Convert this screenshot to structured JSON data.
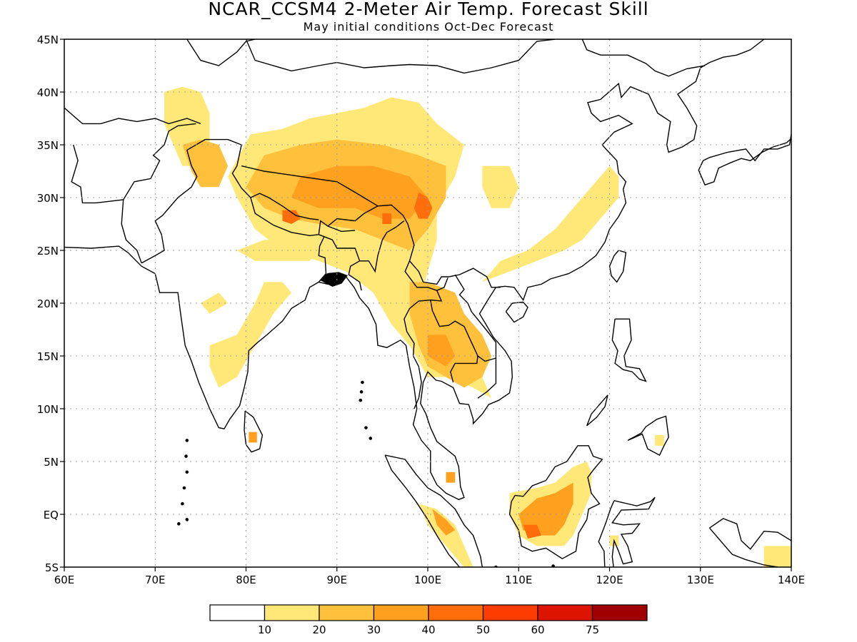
{
  "title": "NCAR_CCSM4 2-Meter Air Temp. Forecast Skill",
  "subtitle": "May initial conditions  Oct-Dec Forecast",
  "map": {
    "lon_range": [
      60,
      140
    ],
    "lat_range": [
      -5,
      45
    ],
    "grid": true
  },
  "x_ticks": [
    "60E",
    "70E",
    "80E",
    "90E",
    "100E",
    "110E",
    "120E",
    "130E",
    "140E"
  ],
  "y_ticks": [
    "45N",
    "40N",
    "35N",
    "30N",
    "25N",
    "20N",
    "15N",
    "10N",
    "5N",
    "EQ",
    "5S"
  ],
  "legend": {
    "labels": [
      "10",
      "20",
      "30",
      "40",
      "50",
      "60",
      "75"
    ],
    "colors": [
      "#ffffff",
      "#ffe878",
      "#ffc03c",
      "#ffa01e",
      "#ff6e0a",
      "#ff3c00",
      "#dc1400",
      "#a00000"
    ]
  },
  "skill_regions": [
    {
      "name": "tibetan-plateau",
      "level": 1,
      "poly": [
        [
          80.5,
          36
        ],
        [
          84,
          36.5
        ],
        [
          87,
          37.5
        ],
        [
          90,
          38
        ],
        [
          93,
          38.5
        ],
        [
          96,
          39.5
        ],
        [
          99,
          39
        ],
        [
          101,
          37
        ],
        [
          104,
          35
        ],
        [
          103,
          32
        ],
        [
          101,
          29
        ],
        [
          101,
          26
        ],
        [
          100,
          23
        ],
        [
          99,
          20
        ],
        [
          101,
          17
        ],
        [
          104,
          15
        ],
        [
          106,
          13
        ],
        [
          107,
          11
        ],
        [
          105,
          12
        ],
        [
          102,
          13
        ],
        [
          100,
          13
        ],
        [
          98,
          16
        ],
        [
          96,
          18
        ],
        [
          94,
          21
        ],
        [
          91,
          23
        ],
        [
          88,
          24
        ],
        [
          84,
          25
        ],
        [
          81,
          27
        ],
        [
          79,
          30
        ],
        [
          78,
          32
        ]
      ]
    },
    {
      "name": "tibet-core",
      "level": 2,
      "poly": [
        [
          82,
          34
        ],
        [
          86,
          35
        ],
        [
          90,
          35.5
        ],
        [
          95,
          35
        ],
        [
          99,
          34
        ],
        [
          102,
          33
        ],
        [
          102,
          30
        ],
        [
          100,
          27
        ],
        [
          98,
          25
        ],
        [
          95,
          26
        ],
        [
          92,
          27
        ],
        [
          88,
          27.5
        ],
        [
          85,
          28
        ],
        [
          82,
          29
        ],
        [
          80,
          31
        ]
      ]
    },
    {
      "name": "tibet-center",
      "level": 3,
      "poly": [
        [
          86,
          32
        ],
        [
          90,
          33
        ],
        [
          94,
          33
        ],
        [
          98,
          32
        ],
        [
          100,
          30
        ],
        [
          98,
          28
        ],
        [
          95,
          28
        ],
        [
          92,
          29
        ],
        [
          88,
          29
        ],
        [
          85,
          30
        ]
      ]
    },
    {
      "name": "tibet-east-max",
      "level": 4,
      "poly": [
        [
          99,
          30.5
        ],
        [
          100,
          30
        ],
        [
          100.5,
          29
        ],
        [
          100,
          28
        ],
        [
          99,
          28
        ],
        [
          98.5,
          29
        ]
      ]
    },
    {
      "name": "nepal-max",
      "level": 4,
      "poly": [
        [
          84,
          28.8
        ],
        [
          85.5,
          28.8
        ],
        [
          86,
          28
        ],
        [
          85,
          27.5
        ],
        [
          84,
          27.8
        ]
      ]
    },
    {
      "name": "bhutan-max",
      "level": 4,
      "poly": [
        [
          95,
          28.5
        ],
        [
          96,
          28.5
        ],
        [
          96,
          27.5
        ],
        [
          95,
          27.5
        ]
      ]
    },
    {
      "name": "indochina",
      "level": 2,
      "poly": [
        [
          98,
          22
        ],
        [
          100,
          22
        ],
        [
          103,
          21
        ],
        [
          104,
          19
        ],
        [
          106,
          17
        ],
        [
          107,
          15
        ],
        [
          106,
          13
        ],
        [
          104,
          12
        ],
        [
          102,
          13
        ],
        [
          100,
          14
        ],
        [
          99,
          16
        ],
        [
          98,
          19
        ]
      ]
    },
    {
      "name": "indochina-core",
      "level": 3,
      "poly": [
        [
          100,
          17
        ],
        [
          102,
          17
        ],
        [
          103,
          15
        ],
        [
          102,
          14
        ],
        [
          100,
          15
        ]
      ]
    },
    {
      "name": "pamir-karakoram",
      "level": 1,
      "poly": [
        [
          71,
          40
        ],
        [
          73,
          40.5
        ],
        [
          75,
          40
        ],
        [
          76,
          38
        ],
        [
          76,
          35
        ],
        [
          75,
          33
        ],
        [
          73,
          33
        ],
        [
          72,
          35
        ],
        [
          71,
          37
        ]
      ]
    },
    {
      "name": "kashmir",
      "level": 2,
      "poly": [
        [
          73,
          35
        ],
        [
          75,
          35.5
        ],
        [
          77,
          35
        ],
        [
          78,
          33
        ],
        [
          77,
          31
        ],
        [
          75,
          31
        ],
        [
          74,
          32.5
        ]
      ]
    },
    {
      "name": "east-china",
      "level": 1,
      "poly": [
        [
          106,
          22
        ],
        [
          109,
          23
        ],
        [
          112,
          24
        ],
        [
          115,
          25
        ],
        [
          117,
          26
        ],
        [
          119,
          28
        ],
        [
          121,
          30
        ],
        [
          121,
          32
        ],
        [
          120,
          33
        ],
        [
          118,
          31
        ],
        [
          116,
          29
        ],
        [
          114,
          27
        ],
        [
          111,
          25
        ],
        [
          108,
          24
        ]
      ]
    },
    {
      "name": "central-china",
      "level": 1,
      "poly": [
        [
          106,
          33
        ],
        [
          109,
          33
        ],
        [
          110,
          31
        ],
        [
          109,
          29
        ],
        [
          107,
          29
        ],
        [
          106,
          31
        ]
      ]
    },
    {
      "name": "india-central",
      "level": 1,
      "poly": [
        [
          76,
          16
        ],
        [
          79,
          17
        ],
        [
          81,
          20
        ],
        [
          82,
          22
        ],
        [
          84,
          22
        ],
        [
          85,
          21
        ],
        [
          83,
          19
        ],
        [
          81,
          16
        ],
        [
          79,
          13
        ],
        [
          77,
          12
        ],
        [
          76,
          14
        ]
      ]
    },
    {
      "name": "india-gangetic",
      "level": 1,
      "poly": [
        [
          79,
          25
        ],
        [
          82,
          26
        ],
        [
          86,
          26
        ],
        [
          88,
          25
        ],
        [
          87,
          24
        ],
        [
          84,
          24
        ],
        [
          81,
          24
        ]
      ]
    },
    {
      "name": "india-west",
      "level": 1,
      "poly": [
        [
          75,
          20
        ],
        [
          77,
          21
        ],
        [
          78,
          20
        ],
        [
          76,
          19
        ]
      ]
    },
    {
      "name": "sri-lanka",
      "level": 3,
      "poly": [
        [
          80.3,
          7.8
        ],
        [
          81.2,
          7.8
        ],
        [
          81.2,
          6.8
        ],
        [
          80.3,
          6.8
        ]
      ]
    },
    {
      "name": "borneo",
      "level": 1,
      "poly": [
        [
          109,
          2
        ],
        [
          112,
          2.5
        ],
        [
          114,
          3
        ],
        [
          116,
          4.5
        ],
        [
          117.5,
          5
        ],
        [
          118,
          4
        ],
        [
          118,
          2
        ],
        [
          117,
          0
        ],
        [
          116,
          -2
        ],
        [
          115,
          -3
        ],
        [
          112,
          -3
        ],
        [
          110,
          -2
        ],
        [
          109,
          0
        ]
      ]
    },
    {
      "name": "borneo-core",
      "level": 3,
      "poly": [
        [
          110,
          0
        ],
        [
          112,
          1.5
        ],
        [
          114,
          2
        ],
        [
          116,
          3
        ],
        [
          116,
          1
        ],
        [
          115,
          -1
        ],
        [
          114,
          -2
        ],
        [
          112,
          -2
        ],
        [
          110.5,
          -1.5
        ]
      ]
    },
    {
      "name": "borneo-max",
      "level": 4,
      "poly": [
        [
          110.5,
          -1
        ],
        [
          112,
          -1
        ],
        [
          112.5,
          -2
        ],
        [
          111,
          -2.3
        ]
      ]
    },
    {
      "name": "sumatra",
      "level": 1,
      "poly": [
        [
          99,
          1
        ],
        [
          101,
          0.5
        ],
        [
          103,
          -1
        ],
        [
          104,
          -3
        ],
        [
          105,
          -5
        ],
        [
          104,
          -5
        ],
        [
          102,
          -3
        ],
        [
          100,
          -1
        ]
      ]
    },
    {
      "name": "sumatra-core",
      "level": 3,
      "poly": [
        [
          100.5,
          0.5
        ],
        [
          102,
          -0.5
        ],
        [
          103,
          -1.5
        ],
        [
          102,
          -2
        ],
        [
          101,
          -1
        ]
      ]
    },
    {
      "name": "malaya-dot",
      "level": 3,
      "poly": [
        [
          102,
          4
        ],
        [
          103,
          4
        ],
        [
          103,
          3
        ],
        [
          102,
          3
        ]
      ]
    },
    {
      "name": "new-guinea",
      "level": 1,
      "poly": [
        [
          137,
          -3
        ],
        [
          140,
          -3
        ],
        [
          140,
          -5
        ],
        [
          137,
          -5
        ]
      ]
    },
    {
      "name": "sulawesi-dot",
      "level": 1,
      "poly": [
        [
          120,
          -2
        ],
        [
          121,
          -2
        ],
        [
          121,
          -3
        ],
        [
          120,
          -3
        ]
      ]
    },
    {
      "name": "philippine-dot",
      "level": 1,
      "poly": [
        [
          125,
          7.5
        ],
        [
          126,
          7.5
        ],
        [
          126,
          6.5
        ],
        [
          125,
          6.5
        ]
      ]
    }
  ]
}
